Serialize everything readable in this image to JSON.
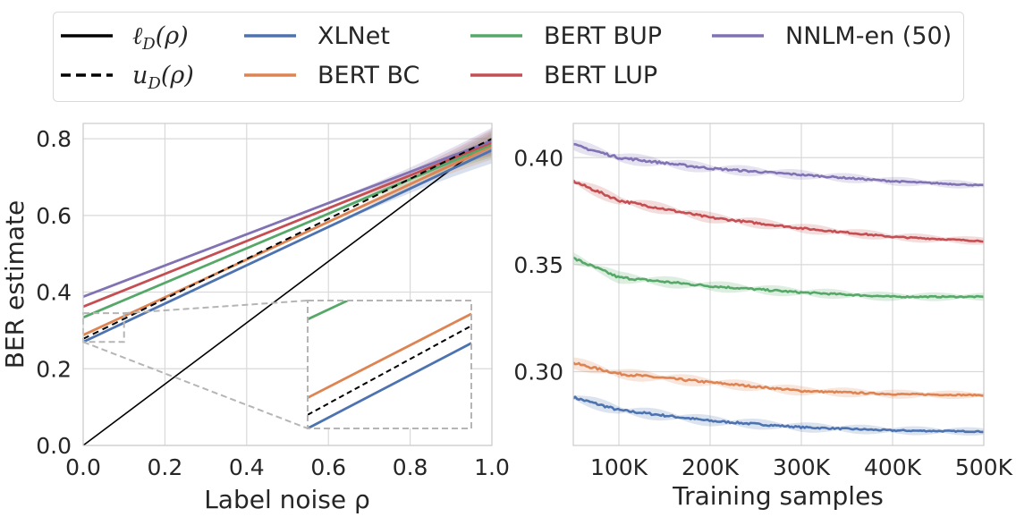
{
  "legend": {
    "items": [
      {
        "label": "ℓ",
        "sub": "D",
        "arg": "(ρ)",
        "color": "#000000",
        "dashed": false,
        "math": true
      },
      {
        "label": "u",
        "sub": "D",
        "arg": "(ρ)",
        "color": "#000000",
        "dashed": true,
        "math": true
      },
      {
        "label": "XLNet",
        "color": "#4c72b0",
        "dashed": false,
        "math": false
      },
      {
        "label": "BERT BC",
        "color": "#dd8452",
        "dashed": false,
        "math": false
      },
      {
        "label": "BERT BUP",
        "color": "#55a868",
        "dashed": false,
        "math": false
      },
      {
        "label": "BERT LUP",
        "color": "#c44e52",
        "dashed": false,
        "math": false
      },
      {
        "label": "NNLM-en (50)",
        "color": "#8172b3",
        "dashed": false,
        "math": false
      }
    ]
  },
  "chart_data": [
    {
      "type": "line",
      "xlabel": "Label noise ρ",
      "ylabel": "BER estimate",
      "xlim": [
        0.0,
        1.0
      ],
      "ylim": [
        0.0,
        0.84
      ],
      "xticks": [
        "0.0",
        "0.2",
        "0.4",
        "0.6",
        "0.8",
        "1.0"
      ],
      "yticks": [
        "0.0",
        "0.2",
        "0.4",
        "0.6",
        "0.8"
      ],
      "grid": true,
      "series": [
        {
          "name": "XLNet",
          "color": "#4c72b0",
          "start": 0.27,
          "end": 0.77
        },
        {
          "name": "BERT BC",
          "color": "#dd8452",
          "start": 0.288,
          "end": 0.78
        },
        {
          "name": "BERT BUP",
          "color": "#55a868",
          "start": 0.334,
          "end": 0.785
        },
        {
          "name": "BERT LUP",
          "color": "#c44e52",
          "start": 0.362,
          "end": 0.79
        },
        {
          "name": "NNLM-en (50)",
          "color": "#8172b3",
          "start": 0.388,
          "end": 0.795
        }
      ],
      "lower_bound": {
        "name": "ℓ_D(ρ)",
        "start": 0.0,
        "end": 0.8
      },
      "upper_bound": {
        "name": "u_D(ρ)",
        "start": 0.278,
        "end": 0.8
      },
      "inset": {
        "xlim": [
          0.0,
          0.1
        ],
        "ylim": [
          0.27,
          0.345
        ],
        "position": "lower-right"
      }
    },
    {
      "type": "line",
      "xlabel": "Training samples",
      "ylabel": "",
      "xlim": [
        50000,
        500000
      ],
      "ylim": [
        0.2655,
        0.416
      ],
      "xticks": [
        "100K",
        "200K",
        "300K",
        "400K",
        "500K"
      ],
      "xtick_values": [
        100000,
        200000,
        300000,
        400000,
        500000
      ],
      "yticks": [
        "0.30",
        "0.35",
        "0.40"
      ],
      "ytick_values": [
        0.3,
        0.35,
        0.4
      ],
      "grid": true,
      "series": [
        {
          "name": "XLNet",
          "color": "#4c72b0",
          "x": [
            50000,
            100000,
            200000,
            300000,
            400000,
            500000
          ],
          "values": [
            0.288,
            0.282,
            0.277,
            0.274,
            0.2725,
            0.272
          ]
        },
        {
          "name": "BERT BC",
          "color": "#dd8452",
          "x": [
            50000,
            100000,
            200000,
            300000,
            400000,
            500000
          ],
          "values": [
            0.304,
            0.299,
            0.295,
            0.291,
            0.2895,
            0.289
          ]
        },
        {
          "name": "BERT BUP",
          "color": "#55a868",
          "x": [
            50000,
            100000,
            200000,
            300000,
            400000,
            500000
          ],
          "values": [
            0.353,
            0.344,
            0.34,
            0.337,
            0.335,
            0.335
          ]
        },
        {
          "name": "BERT LUP",
          "color": "#c44e52",
          "x": [
            50000,
            100000,
            200000,
            300000,
            400000,
            500000
          ],
          "values": [
            0.389,
            0.38,
            0.372,
            0.367,
            0.363,
            0.361
          ]
        },
        {
          "name": "NNLM-en (50)",
          "color": "#8172b3",
          "x": [
            50000,
            100000,
            200000,
            300000,
            400000,
            500000
          ],
          "values": [
            0.406,
            0.4,
            0.395,
            0.392,
            0.389,
            0.387
          ]
        }
      ]
    }
  ]
}
